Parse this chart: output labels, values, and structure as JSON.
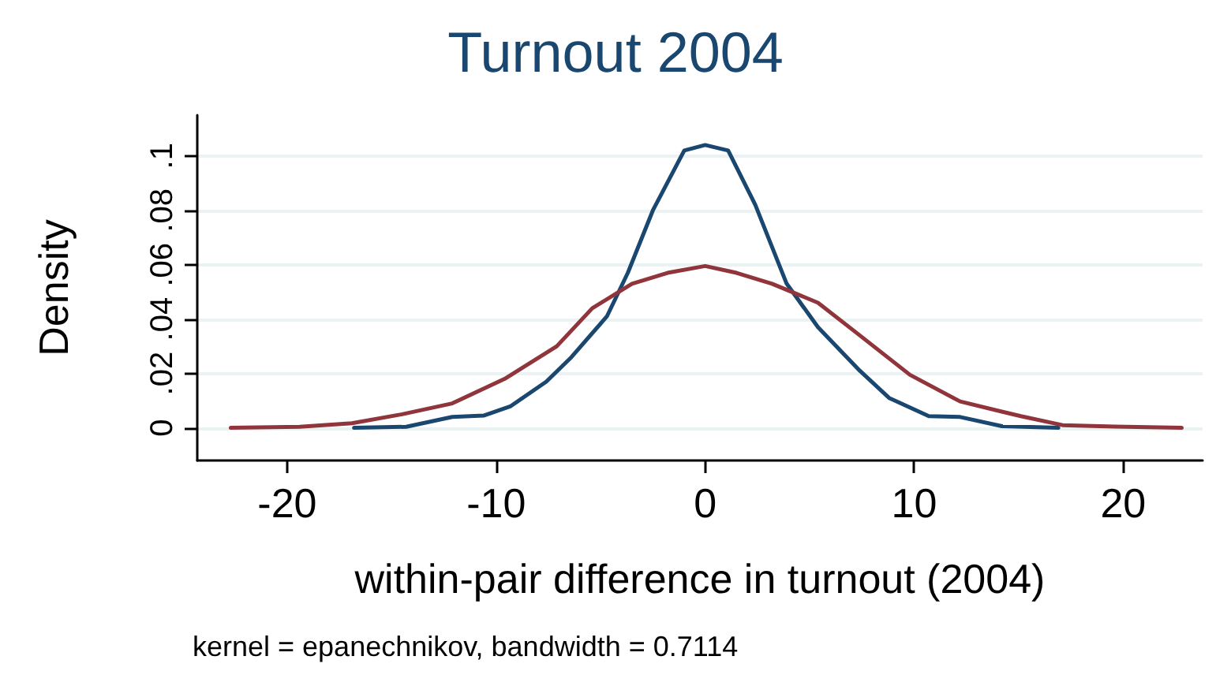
{
  "chart_data": {
    "type": "line",
    "title": "Turnout 2004",
    "xlabel": "within-pair difference in turnout (2004)",
    "ylabel": "Density",
    "annotations": [
      "kernel = epanechnikov, bandwidth = 0.7114"
    ],
    "xlim": [
      -24.3,
      23.8
    ],
    "xticks": [
      -20,
      -10,
      0,
      10,
      20
    ],
    "ylim": [
      -0.012,
      0.115
    ],
    "yticks": [
      0,
      {
        "value": 0.02,
        "label": ".02"
      },
      {
        "value": 0.04,
        "label": ".04"
      },
      {
        "value": 0.06,
        "label": ".06"
      },
      {
        "value": 0.08,
        "label": ".08"
      },
      {
        "value": 0.1,
        "label": ".1"
      }
    ],
    "grid": "y",
    "marker": "none",
    "line_style": "solid",
    "series": [
      {
        "color": "#1a476f",
        "x": [
          -16.8,
          -14.3,
          -12.1,
          -10.6,
          -9.3,
          -7.6,
          -6.4,
          -4.7,
          -3.7,
          -2.5,
          -1.0,
          0,
          1.1,
          2.4,
          3.9,
          5.4,
          7.4,
          8.8,
          10.7,
          12.2,
          14.2,
          16.9
        ],
        "values": [
          0,
          0.0004,
          0.004,
          0.0045,
          0.008,
          0.017,
          0.026,
          0.041,
          0.057,
          0.08,
          0.102,
          0.104,
          0.102,
          0.082,
          0.053,
          0.037,
          0.021,
          0.011,
          0.0043,
          0.004,
          0.0006,
          0
        ]
      },
      {
        "color": "#90353b",
        "x": [
          -22.7,
          -19.4,
          -16.9,
          -14.5,
          -12.1,
          -9.6,
          -7.1,
          -5.4,
          -3.5,
          -1.8,
          0,
          1.5,
          3.2,
          5.4,
          7.4,
          9.8,
          12.2,
          15.1,
          17.1,
          19.6,
          22.8
        ],
        "values": [
          0,
          0.0004,
          0.0017,
          0.005,
          0.009,
          0.018,
          0.03,
          0.044,
          0.053,
          0.057,
          0.0595,
          0.057,
          0.053,
          0.046,
          0.034,
          0.0195,
          0.0097,
          0.0043,
          0.001,
          0.0005,
          0
        ]
      }
    ]
  }
}
